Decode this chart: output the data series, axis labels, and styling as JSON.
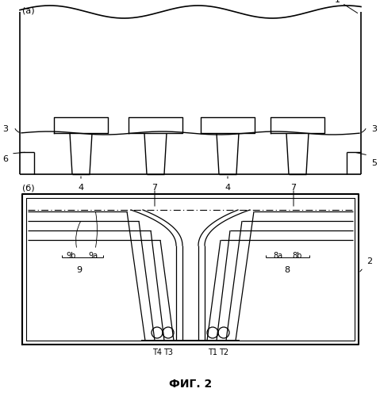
{
  "title": "ФИГ. 2",
  "bg_color": "#ffffff",
  "line_color": "#000000",
  "label_a": "(а)",
  "label_b": "(б)",
  "fs_main": 8,
  "fs_small": 7
}
